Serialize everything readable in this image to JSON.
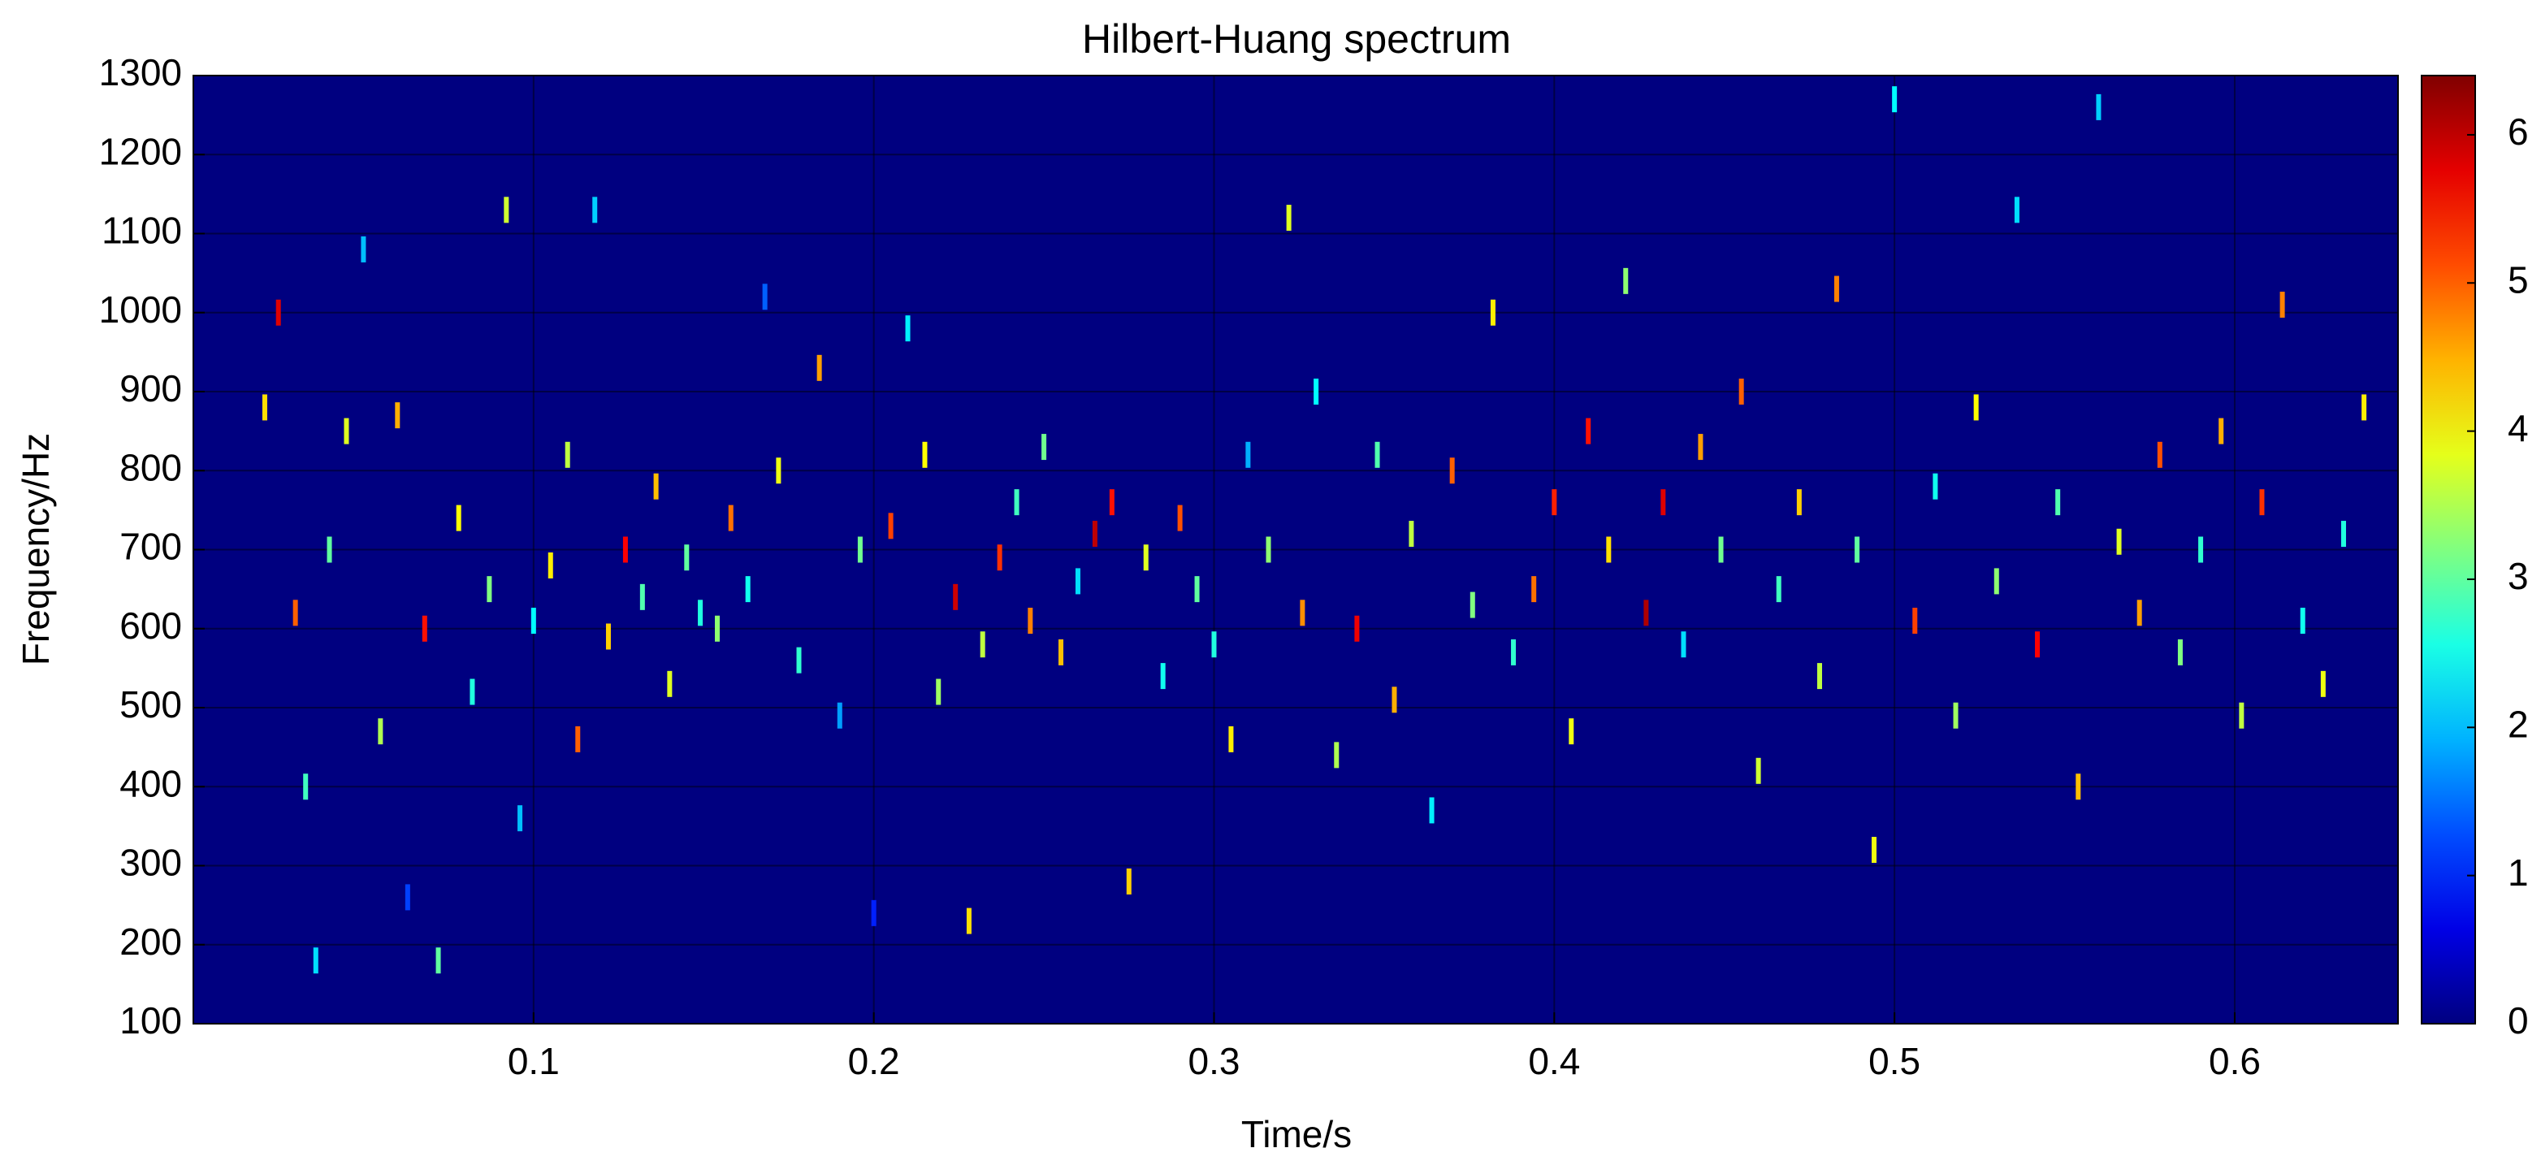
{
  "chart_data": {
    "type": "heatmap",
    "title": "Hilbert-Huang spectrum",
    "x_label": "Time/s",
    "y_label": "Frequency/Hz",
    "colormap": "jet",
    "grid": true,
    "xlim": [
      0,
      0.648
    ],
    "xticks": [
      0.1,
      0.2,
      0.3,
      0.4,
      0.5,
      0.6
    ],
    "ylim": [
      100,
      1300
    ],
    "yticks": [
      100,
      200,
      300,
      400,
      500,
      600,
      700,
      800,
      900,
      1000,
      1100,
      1200,
      1300
    ],
    "clim": [
      0,
      6.4
    ],
    "cticks": [
      0,
      1,
      2,
      3,
      4,
      5,
      6
    ],
    "x": [
      0.021,
      0.025,
      0.03,
      0.033,
      0.036,
      0.04,
      0.045,
      0.05,
      0.055,
      0.06,
      0.063,
      0.068,
      0.072,
      0.078,
      0.082,
      0.087,
      0.092,
      0.096,
      0.1,
      0.105,
      0.11,
      0.113,
      0.118,
      0.122,
      0.127,
      0.132,
      0.136,
      0.14,
      0.145,
      0.149,
      0.154,
      0.158,
      0.163,
      0.168,
      0.172,
      0.178,
      0.184,
      0.19,
      0.196,
      0.2,
      0.205,
      0.21,
      0.215,
      0.219,
      0.224,
      0.228,
      0.232,
      0.237,
      0.242,
      0.246,
      0.25,
      0.255,
      0.26,
      0.265,
      0.27,
      0.275,
      0.28,
      0.285,
      0.29,
      0.295,
      0.3,
      0.305,
      0.31,
      0.316,
      0.322,
      0.326,
      0.33,
      0.336,
      0.342,
      0.348,
      0.353,
      0.358,
      0.364,
      0.37,
      0.376,
      0.382,
      0.388,
      0.394,
      0.4,
      0.405,
      0.41,
      0.416,
      0.421,
      0.427,
      0.432,
      0.438,
      0.443,
      0.449,
      0.455,
      0.46,
      0.466,
      0.472,
      0.478,
      0.483,
      0.489,
      0.494,
      0.5,
      0.506,
      0.512,
      0.518,
      0.524,
      0.53,
      0.536,
      0.542,
      0.548,
      0.554,
      0.56,
      0.566,
      0.572,
      0.578,
      0.584,
      0.59,
      0.596,
      0.602,
      0.608,
      0.614,
      0.62,
      0.626,
      0.632,
      0.638
    ],
    "y": [
      880,
      1000,
      620,
      400,
      180,
      700,
      850,
      1080,
      470,
      870,
      260,
      600,
      180,
      740,
      520,
      650,
      1130,
      360,
      610,
      680,
      820,
      460,
      1130,
      590,
      700,
      640,
      780,
      530,
      690,
      620,
      600,
      740,
      650,
      1020,
      800,
      560,
      930,
      490,
      700,
      240,
      730,
      980,
      820,
      520,
      640,
      230,
      580,
      690,
      760,
      610,
      830,
      570,
      660,
      720,
      760,
      280,
      690,
      540,
      740,
      650,
      580,
      460,
      820,
      700,
      1120,
      620,
      900,
      440,
      600,
      820,
      510,
      720,
      370,
      800,
      630,
      1000,
      570,
      650,
      760,
      470,
      850,
      700,
      1040,
      620,
      760,
      580,
      830,
      700,
      900,
      420,
      650,
      760,
      540,
      1030,
      700,
      320,
      1270,
      610,
      780,
      490,
      880,
      660,
      1130,
      580,
      760,
      400,
      1260,
      710,
      620,
      820,
      570,
      700,
      850,
      490,
      760,
      1010,
      610,
      530,
      720,
      880
    ],
    "values": [
      4.2,
      5.8,
      5.0,
      2.8,
      2.2,
      3.0,
      3.8,
      2.0,
      3.5,
      4.5,
      1.2,
      5.5,
      3.0,
      4.0,
      2.6,
      3.2,
      3.7,
      2.0,
      2.4,
      4.1,
      3.6,
      5.0,
      2.1,
      4.3,
      5.6,
      2.9,
      4.4,
      3.8,
      3.0,
      2.6,
      3.3,
      4.9,
      2.5,
      1.4,
      3.9,
      2.7,
      4.6,
      1.8,
      3.1,
      1.0,
      5.2,
      2.3,
      4.0,
      3.4,
      5.9,
      4.2,
      3.6,
      5.3,
      2.8,
      4.8,
      3.1,
      4.4,
      2.2,
      6.0,
      5.5,
      4.3,
      3.8,
      2.5,
      5.1,
      3.0,
      2.6,
      4.1,
      1.9,
      3.3,
      3.8,
      4.7,
      2.4,
      3.5,
      5.7,
      2.9,
      4.5,
      3.6,
      2.3,
      5.0,
      3.2,
      4.1,
      2.7,
      4.9,
      5.4,
      3.9,
      5.5,
      4.2,
      3.3,
      6.1,
      5.8,
      2.2,
      4.6,
      3.1,
      5.0,
      3.7,
      2.8,
      4.3,
      3.6,
      4.8,
      3.0,
      3.9,
      2.4,
      5.2,
      2.5,
      3.4,
      4.0,
      3.3,
      2.2,
      5.6,
      2.9,
      4.4,
      2.1,
      3.8,
      4.6,
      5.1,
      3.2,
      2.7,
      4.5,
      3.6,
      5.3,
      4.8,
      2.5,
      3.9,
      2.6,
      4.1
    ]
  }
}
